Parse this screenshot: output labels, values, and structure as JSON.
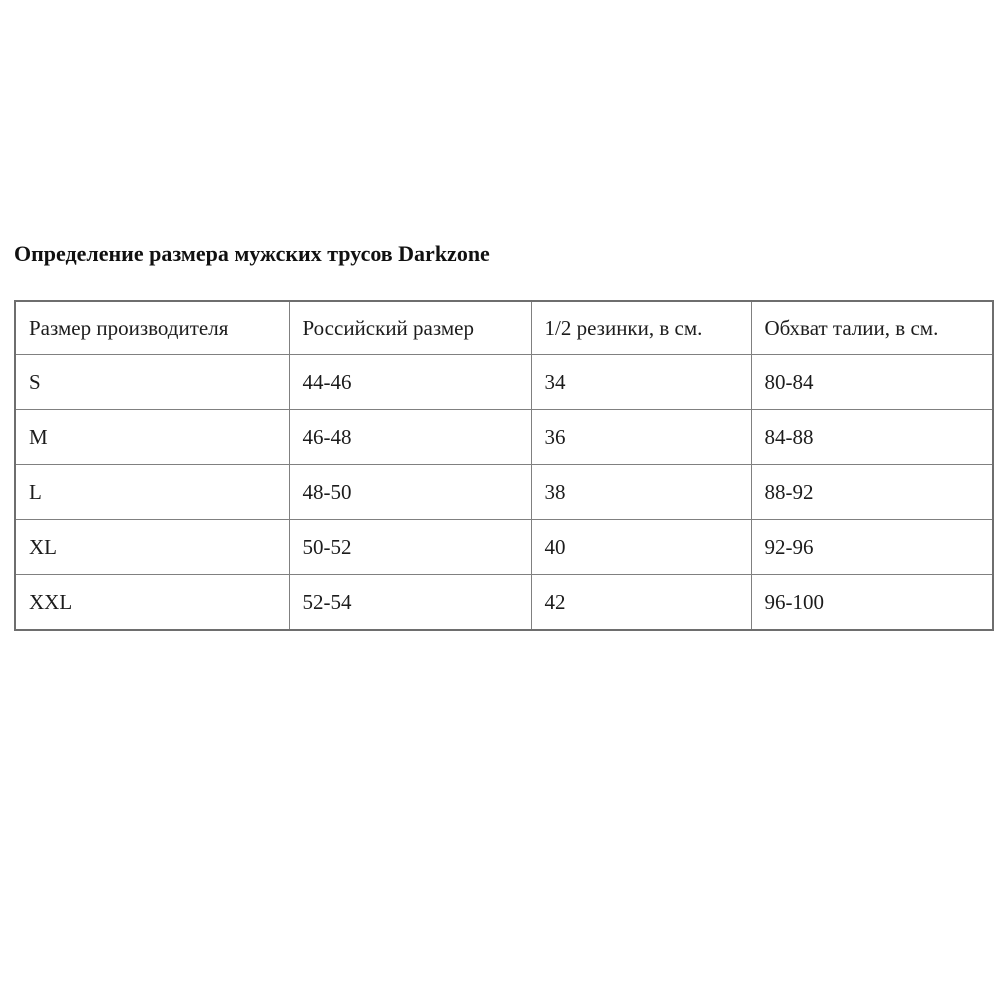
{
  "page": {
    "title": "Определение размера мужских трусов Darkzone"
  },
  "table": {
    "headers": [
      "Размер производителя",
      "Российский размер",
      "1/2 резинки, в см.",
      "Обхват талии, в см."
    ],
    "rows": [
      [
        "S",
        "44-46",
        "34",
        "80-84"
      ],
      [
        "M",
        "46-48",
        "36",
        "84-88"
      ],
      [
        "L",
        "48-50",
        "38",
        "88-92"
      ],
      [
        "XL",
        "50-52",
        "40",
        "92-96"
      ],
      [
        "XXL",
        "52-54",
        "42",
        "96-100"
      ]
    ]
  },
  "colors": {
    "text": "#1c1c1c",
    "border": "#808080",
    "background": "#ffffff"
  }
}
